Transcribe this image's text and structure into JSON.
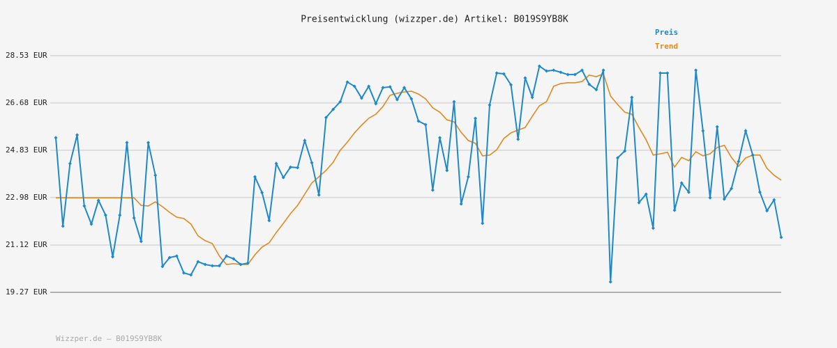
{
  "chart_data": {
    "type": "line",
    "title": "Preisentwicklung (wizzper.de) Artikel: B019S9YB8K",
    "footer": "Wizzper.de – B019S9YB8K",
    "ylim": [
      19.27,
      28.53
    ],
    "yticks": [
      {
        "value": 19.27,
        "label": "19.27 EUR"
      },
      {
        "value": 21.12,
        "label": "21.12 EUR"
      },
      {
        "value": 22.98,
        "label": "22.98 EUR"
      },
      {
        "value": 24.83,
        "label": "24.83 EUR"
      },
      {
        "value": 26.68,
        "label": "26.68 EUR"
      },
      {
        "value": 28.53,
        "label": "28.53 EUR"
      }
    ],
    "grid": true,
    "legend": "top-right",
    "series": [
      {
        "name": "Preis",
        "color": "#1f88c8",
        "markers": true,
        "values": [
          25.32,
          21.86,
          24.31,
          25.43,
          22.65,
          21.94,
          22.87,
          22.29,
          20.66,
          22.29,
          25.13,
          22.18,
          21.26,
          25.13,
          23.85,
          20.28,
          20.63,
          20.69,
          20.03,
          19.95,
          20.47,
          20.36,
          20.31,
          20.31,
          20.69,
          20.58,
          20.36,
          20.41,
          23.79,
          23.17,
          22.08,
          24.31,
          23.76,
          24.17,
          24.15,
          25.21,
          24.34,
          23.08,
          26.11,
          26.43,
          26.73,
          27.5,
          27.33,
          26.87,
          27.33,
          26.65,
          27.28,
          27.31,
          26.81,
          27.28,
          26.84,
          25.97,
          25.83,
          23.27,
          25.32,
          24.04,
          26.73,
          22.73,
          23.79,
          26.08,
          21.97,
          26.6,
          27.85,
          27.82,
          27.39,
          25.26,
          27.66,
          26.9,
          28.12,
          27.93,
          27.96,
          27.88,
          27.79,
          27.79,
          27.96,
          27.41,
          27.2,
          27.96,
          19.68,
          24.53,
          24.8,
          26.9,
          22.78,
          23.11,
          21.78,
          27.85,
          27.85,
          22.48,
          23.55,
          23.19,
          27.96,
          25.59,
          22.97,
          25.75,
          22.92,
          23.33,
          24.39,
          25.59,
          24.64,
          23.19,
          22.46,
          22.89,
          21.42
        ]
      },
      {
        "name": "Trend",
        "color": "#e08a1e",
        "markers": false,
        "values": [
          22.97,
          22.97,
          22.97,
          22.97,
          22.97,
          22.97,
          22.97,
          22.97,
          22.97,
          22.97,
          22.97,
          22.97,
          22.67,
          22.65,
          22.81,
          22.62,
          22.4,
          22.21,
          22.16,
          21.94,
          21.48,
          21.29,
          21.18,
          20.69,
          20.36,
          20.39,
          20.36,
          20.36,
          20.74,
          21.04,
          21.21,
          21.61,
          21.97,
          22.35,
          22.67,
          23.11,
          23.55,
          23.79,
          24.04,
          24.36,
          24.83,
          25.15,
          25.51,
          25.81,
          26.08,
          26.24,
          26.54,
          26.98,
          27.06,
          27.11,
          27.14,
          27.03,
          26.84,
          26.49,
          26.32,
          26.02,
          25.94,
          25.53,
          25.21,
          25.1,
          24.61,
          24.64,
          24.85,
          25.29,
          25.51,
          25.62,
          25.72,
          26.16,
          26.57,
          26.73,
          27.33,
          27.44,
          27.47,
          27.47,
          27.52,
          27.77,
          27.71,
          27.82,
          26.95,
          26.62,
          26.32,
          26.24,
          25.72,
          25.24,
          24.64,
          24.69,
          24.75,
          24.17,
          24.55,
          24.42,
          24.77,
          24.61,
          24.69,
          24.94,
          25.02,
          24.55,
          24.2,
          24.53,
          24.64,
          24.64,
          24.12,
          23.85,
          23.66
        ]
      }
    ]
  }
}
